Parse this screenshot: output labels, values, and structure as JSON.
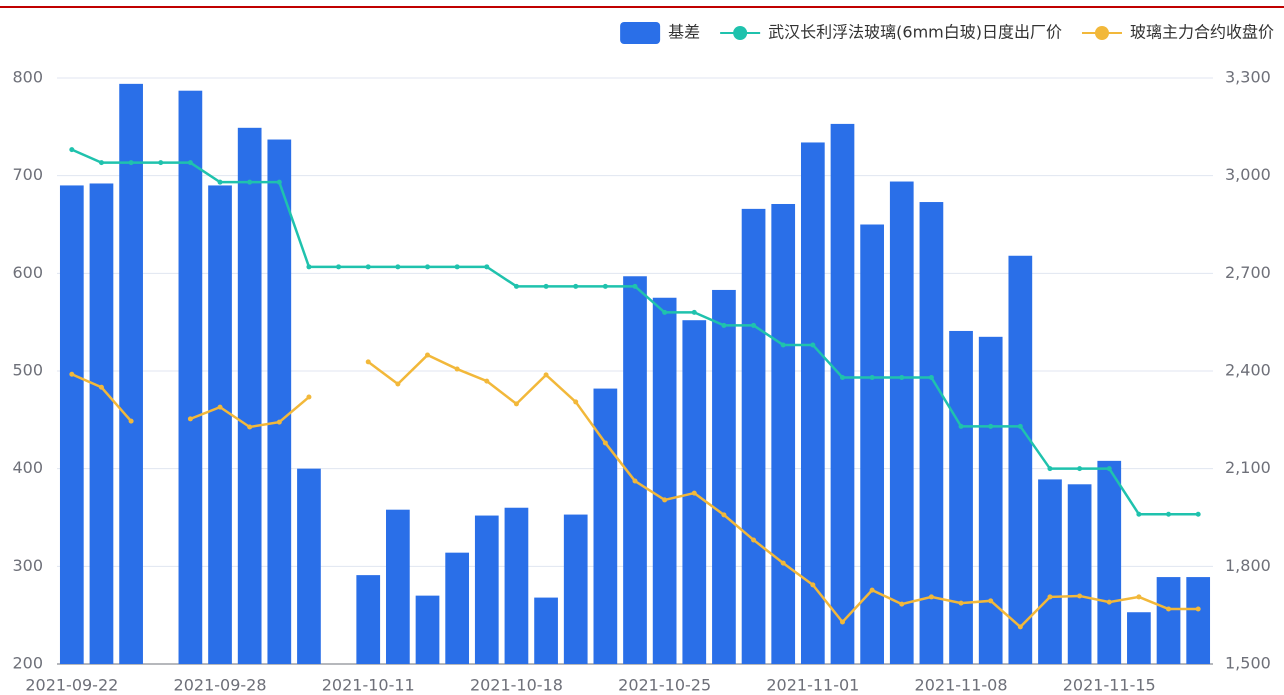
{
  "chart_data": {
    "type": "bar_line",
    "categories": [
      "2021-09-22",
      null,
      null,
      null,
      null,
      "2021-09-28",
      null,
      null,
      null,
      null,
      "2021-10-11",
      null,
      null,
      null,
      null,
      "2021-10-18",
      null,
      null,
      null,
      null,
      "2021-10-25",
      null,
      null,
      null,
      null,
      "2021-11-01",
      null,
      null,
      null,
      null,
      "2021-11-08",
      null,
      null,
      null,
      null,
      "2021-11-15",
      null,
      null,
      null
    ],
    "series": [
      {
        "name": "基差",
        "type": "bar",
        "color": "#2a6fe8",
        "values": [
          690,
          692,
          794,
          null,
          787,
          690,
          749,
          737,
          400,
          null,
          291,
          358,
          270,
          314,
          352,
          360,
          268,
          353,
          482,
          597,
          575,
          552,
          583,
          666,
          671,
          734,
          753,
          650,
          694,
          673,
          541,
          535,
          618,
          389,
          384,
          408,
          253,
          289,
          289
        ]
      },
      {
        "name": "武汉长利浮法玻璃(6mm白玻)日度出厂价",
        "type": "line",
        "axis": "y2",
        "color": "#1fc2ad",
        "values": [
          3080,
          3040,
          3040,
          3040,
          3040,
          2980,
          2980,
          2980,
          2720,
          2720,
          2720,
          2720,
          2720,
          2720,
          2720,
          2660,
          2660,
          2660,
          2660,
          2660,
          2580,
          2580,
          2540,
          2540,
          2480,
          2480,
          2380,
          2380,
          2380,
          2380,
          2230,
          2230,
          2230,
          2100,
          2100,
          2100,
          1960,
          1960,
          1960
        ]
      },
      {
        "name": "玻璃主力合约收盘价",
        "type": "line",
        "axis": "y2",
        "color": "#f2b83a",
        "values": [
          2390,
          2350,
          2246,
          null,
          2253,
          2289,
          2228,
          2243,
          2320,
          null,
          2428,
          2360,
          2449,
          2406,
          2369,
          2299,
          2388,
          2305,
          2179,
          2062,
          2004,
          2025,
          1958,
          1881,
          1810,
          1743,
          1629,
          1727,
          1684,
          1706,
          1687,
          1694,
          1614,
          1706,
          1709,
          1690,
          1706,
          1669,
          1669
        ]
      }
    ],
    "ylim": [
      200,
      800
    ],
    "yticks": [
      200,
      300,
      400,
      500,
      600,
      700,
      800
    ],
    "y2lim": [
      1500,
      3300
    ],
    "y2ticks": [
      {
        "value": 1500,
        "label": "1,500"
      },
      {
        "value": 1800,
        "label": "1,800"
      },
      {
        "value": 2100,
        "label": "2,100"
      },
      {
        "value": 2400,
        "label": "2,400"
      },
      {
        "value": 2700,
        "label": "2,700"
      },
      {
        "value": 3000,
        "label": "3,000"
      },
      {
        "value": 3300,
        "label": "3,300"
      }
    ],
    "grid": true,
    "legend": "top-right"
  }
}
